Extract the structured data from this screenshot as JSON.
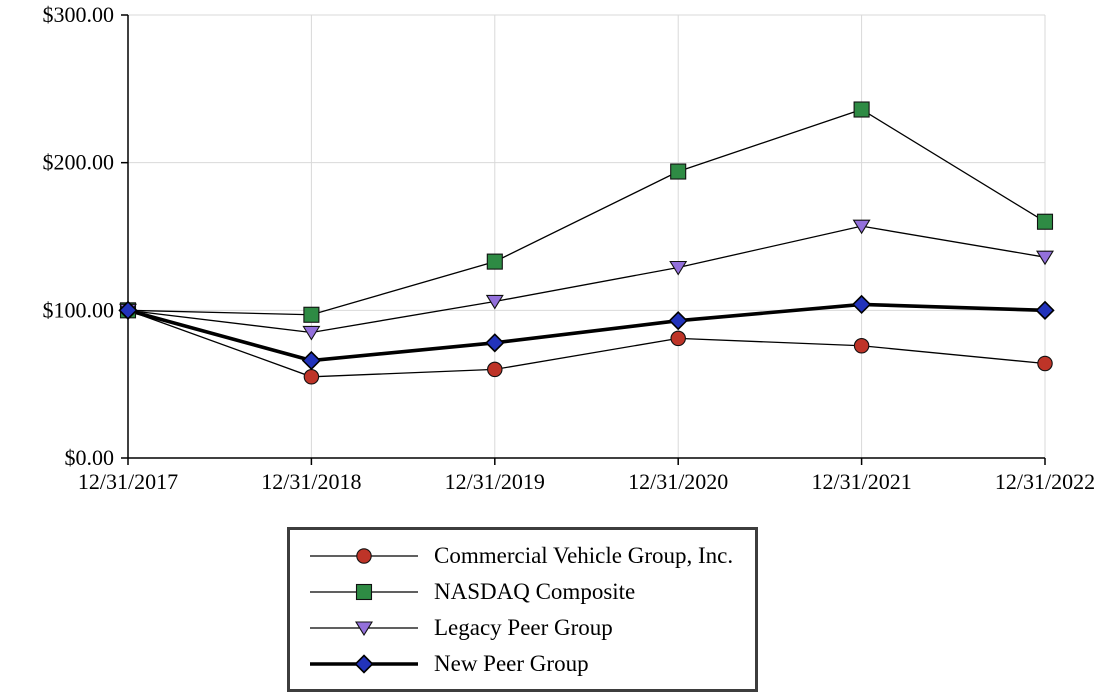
{
  "chart_data": {
    "type": "line",
    "title": "",
    "xlabel": "",
    "ylabel": "",
    "x_labels": [
      "12/31/2017",
      "12/31/2018",
      "12/31/2019",
      "12/31/2020",
      "12/31/2021",
      "12/31/2022"
    ],
    "y_ticks": [
      0,
      100,
      200,
      300
    ],
    "y_tick_labels": [
      "$0.00",
      "$100.00",
      "$200.00",
      "$300.00"
    ],
    "ylim": [
      0,
      300
    ],
    "grid": true,
    "gridline_color": "#d9d9d9",
    "axis_color": "#000000",
    "legend_position": "bottom",
    "series": [
      {
        "name": "Commercial Vehicle Group, Inc.",
        "marker": "circle",
        "color": "#be3428",
        "line_color": "#000000",
        "line_width": 1.3,
        "values": [
          100,
          55,
          60,
          81,
          76,
          64
        ]
      },
      {
        "name": "NASDAQ Composite",
        "marker": "square",
        "color": "#2e8b44",
        "line_color": "#000000",
        "line_width": 1.3,
        "values": [
          100,
          97,
          133,
          194,
          236,
          160
        ]
      },
      {
        "name": "Legacy Peer Group",
        "marker": "triangle-down",
        "color": "#9370db",
        "line_color": "#000000",
        "line_width": 1.3,
        "values": [
          100,
          85,
          106,
          129,
          157,
          136
        ]
      },
      {
        "name": "New Peer Group",
        "marker": "diamond",
        "color": "#2233bb",
        "line_color": "#000000",
        "line_width": 3.6,
        "values": [
          100,
          66,
          78,
          93,
          104,
          100
        ]
      }
    ]
  }
}
